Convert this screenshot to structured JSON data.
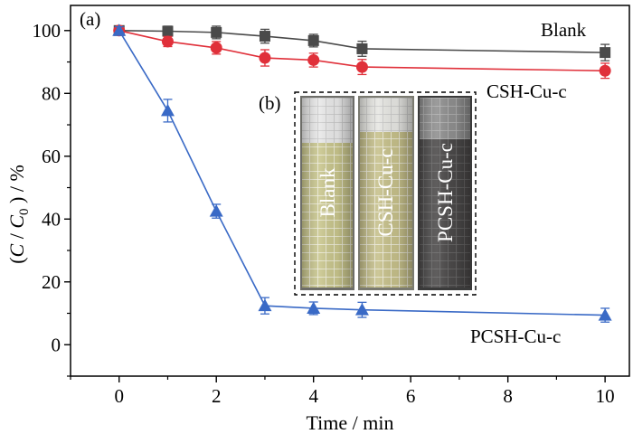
{
  "chart_data": {
    "type": "line",
    "panel_label": "(a)",
    "inset_label": "(b)",
    "xlabel": "Time / min",
    "ylabel": {
      "open": "(",
      "c": "C",
      "slash": " / ",
      "c0": "C",
      "sub0": "0",
      "close": " ) / %"
    },
    "xlim": [
      -1,
      10.5
    ],
    "ylim": [
      -10,
      108
    ],
    "xticks": [
      0,
      2,
      4,
      6,
      8,
      10
    ],
    "yticks": [
      0,
      20,
      40,
      60,
      80,
      100
    ],
    "series": [
      {
        "name": "Blank",
        "color": "#4a4a4a",
        "marker": "square",
        "x": [
          0,
          1,
          2,
          3,
          4,
          5,
          10
        ],
        "y": [
          100,
          99.8,
          99.4,
          98.2,
          96.8,
          94.2,
          93
        ],
        "err": [
          1.2,
          1.6,
          2,
          2.2,
          2,
          2.4,
          2.6
        ]
      },
      {
        "name": "CSH-Cu-c",
        "color": "#e0303a",
        "marker": "circle",
        "x": [
          0,
          1,
          2,
          3,
          4,
          5,
          10
        ],
        "y": [
          100,
          96.5,
          94.5,
          91.3,
          90.6,
          88.4,
          87.2
        ],
        "err": [
          1.2,
          1.6,
          2,
          2.6,
          2.2,
          2.4,
          2.4
        ]
      },
      {
        "name": "PCSH-Cu-c",
        "color": "#3a6ac6",
        "marker": "triangle",
        "x": [
          0,
          1,
          2,
          3,
          4,
          5,
          10
        ],
        "y": [
          100,
          74.5,
          42.5,
          12.4,
          11.6,
          11.1,
          9.4
        ],
        "err": [
          1.2,
          3.6,
          2.2,
          2.6,
          2,
          2.4,
          2.2
        ]
      }
    ],
    "vials": [
      "Blank",
      "CSH-Cu-c",
      "PCSH-Cu-c"
    ],
    "vial_colors": [
      "#c8c58c",
      "#c6c08a",
      "#4a4848"
    ]
  }
}
